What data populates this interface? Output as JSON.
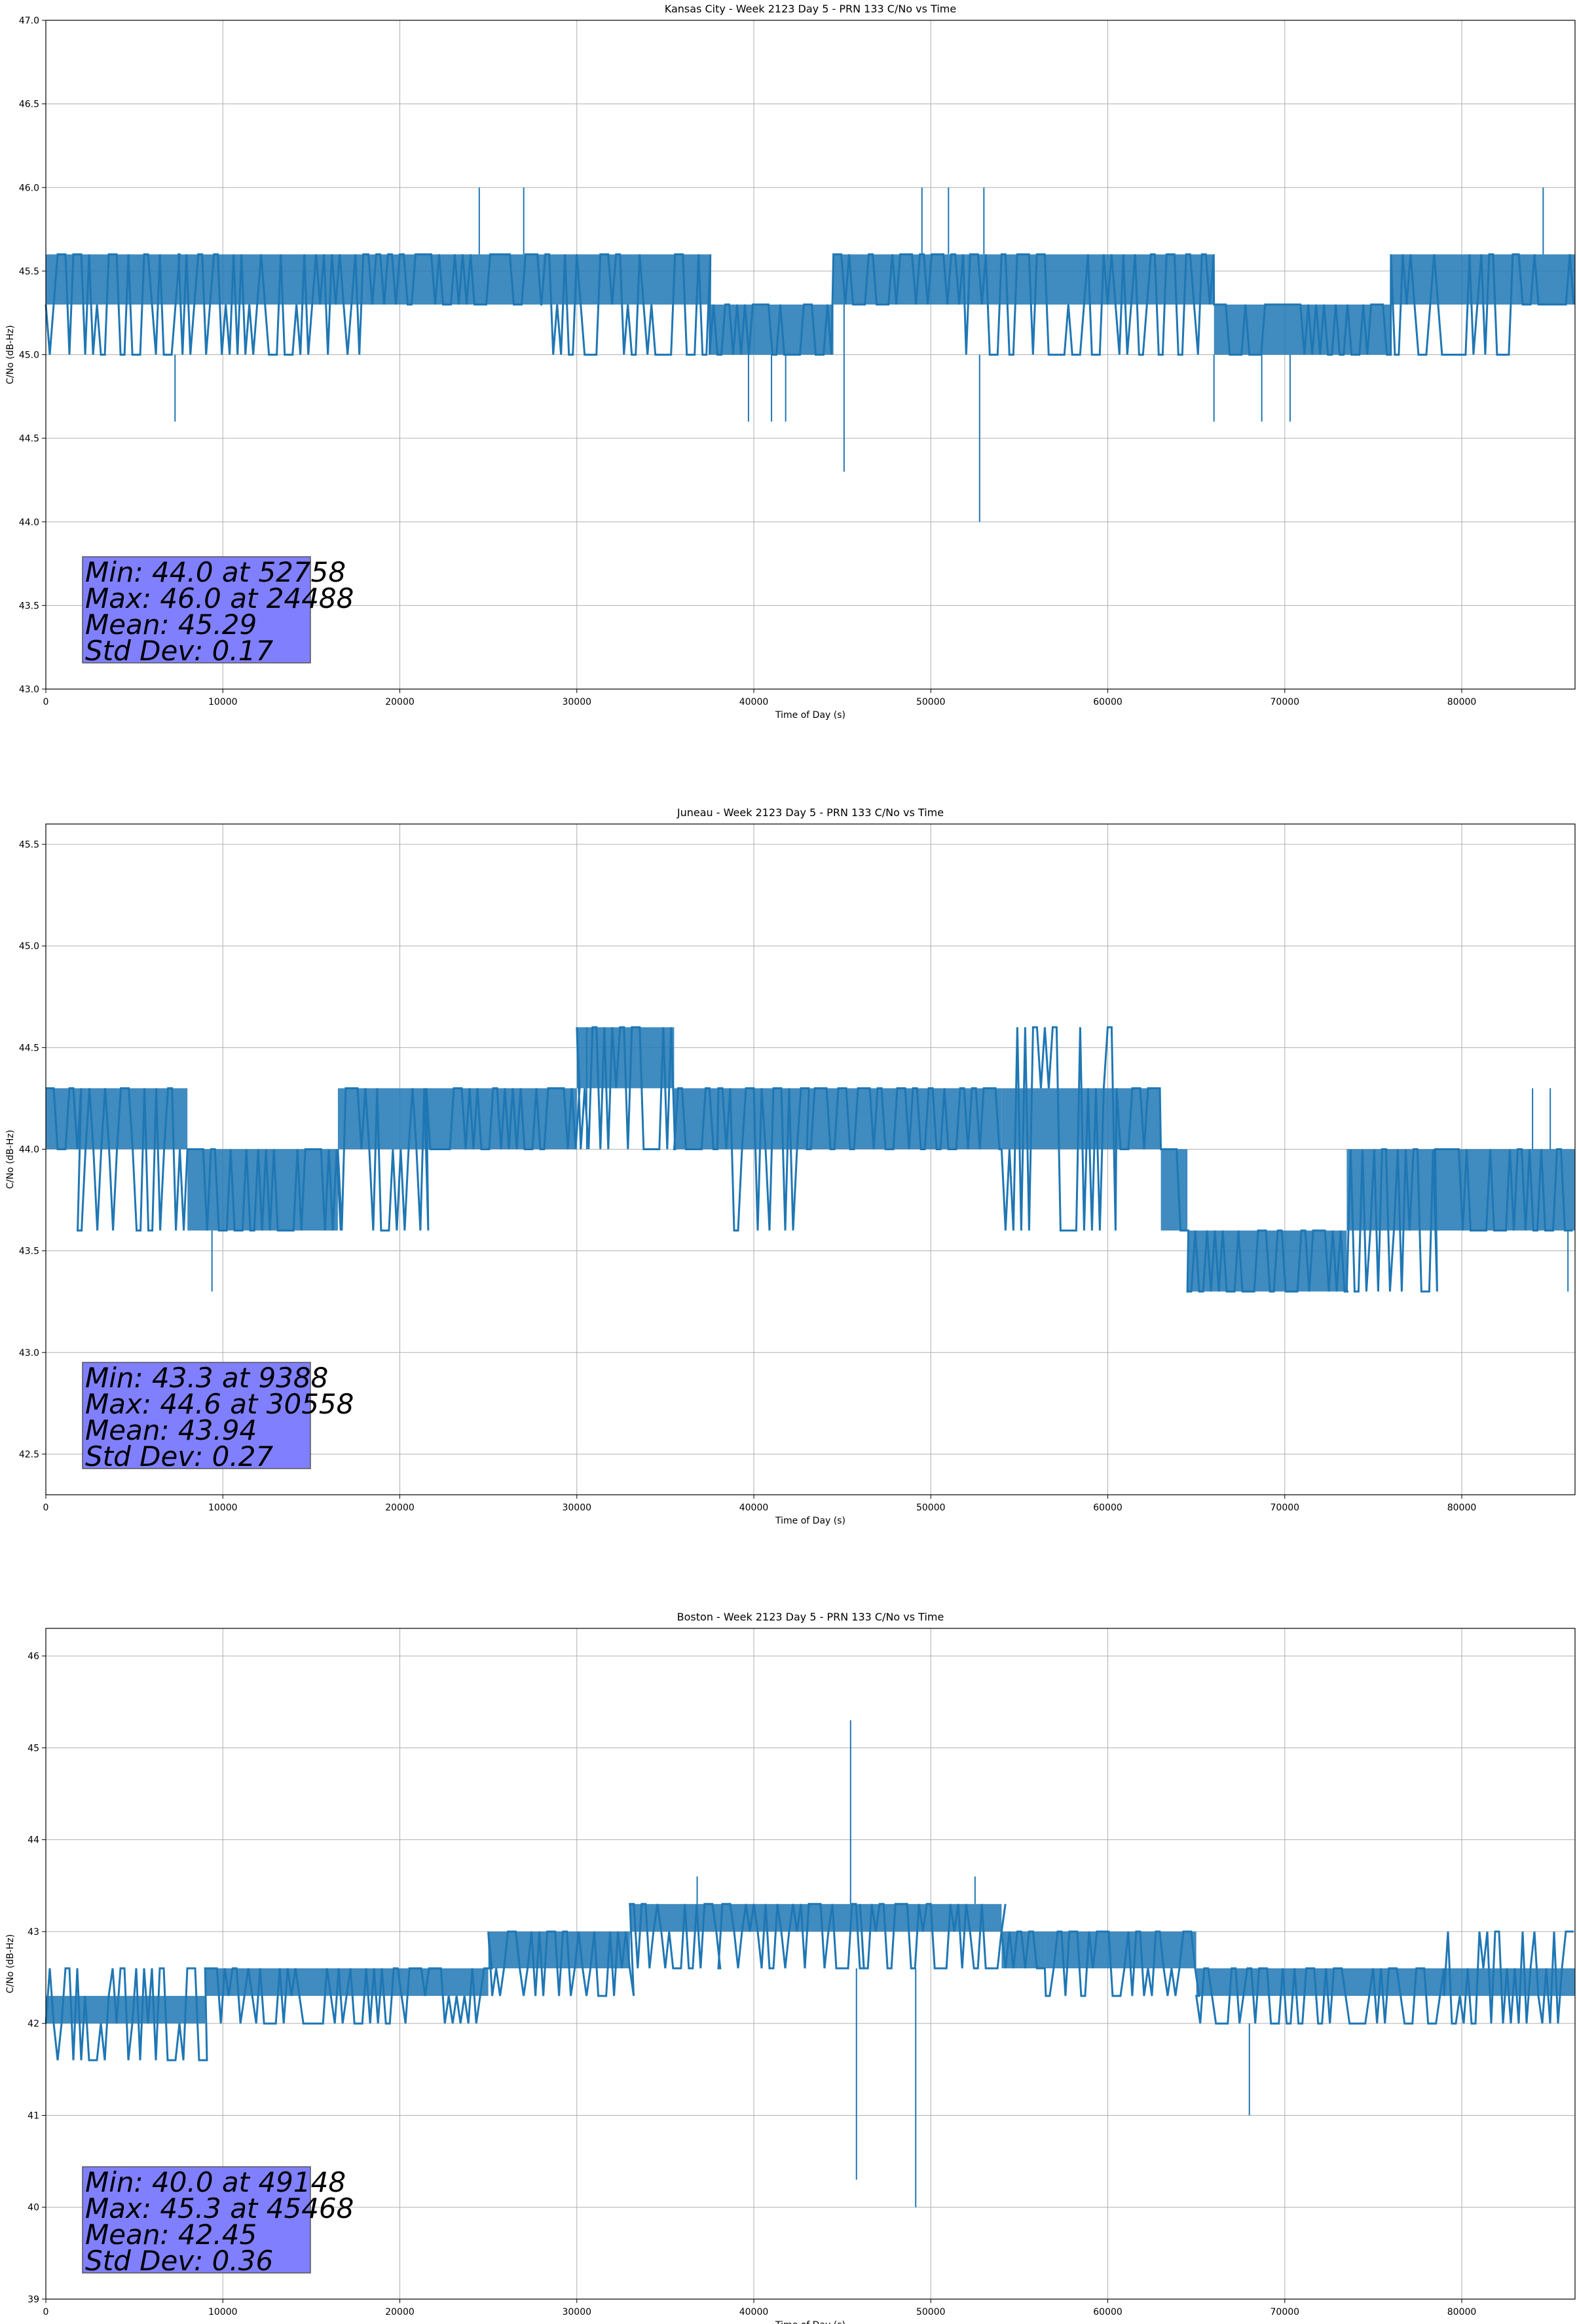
{
  "figure": {
    "line_color": "#1f77b4",
    "stats_box_color": "#8080ff",
    "grid_color": "#b0b0b0"
  },
  "chart_data": [
    {
      "type": "line",
      "title": "Kansas City - Week 2123 Day 5 - PRN 133 C/No vs Time",
      "xlabel": "Time of Day (s)",
      "ylabel": "C/No (dB-Hz)",
      "xlim": [
        0,
        86400
      ],
      "ylim": [
        43.0,
        47.0
      ],
      "xticks": [
        0,
        10000,
        20000,
        30000,
        40000,
        50000,
        60000,
        70000,
        80000
      ],
      "yticks": [
        "43.0",
        "43.5",
        "44.0",
        "44.5",
        "45.0",
        "45.5",
        "46.0",
        "46.5",
        "47.0"
      ],
      "grid": true,
      "quantization_step": 0.3,
      "bands": [
        {
          "x": [
            0,
            2000
          ],
          "levels": [
            45.0,
            45.3,
            45.6
          ]
        },
        {
          "x": [
            2000,
            7500
          ],
          "levels": [
            45.0,
            45.3,
            45.6
          ]
        },
        {
          "x": [
            7500,
            18000
          ],
          "levels": [
            45.0,
            45.3,
            45.6
          ]
        },
        {
          "x": [
            18000,
            28000
          ],
          "levels": [
            45.3,
            45.6
          ]
        },
        {
          "x": [
            28000,
            37500
          ],
          "levels": [
            45.0,
            45.3,
            45.6
          ]
        },
        {
          "x": [
            37500,
            44500
          ],
          "levels": [
            45.0,
            45.3
          ]
        },
        {
          "x": [
            44500,
            52000
          ],
          "levels": [
            45.3,
            45.6
          ]
        },
        {
          "x": [
            52000,
            66000
          ],
          "levels": [
            45.0,
            45.3,
            45.6
          ]
        },
        {
          "x": [
            66000,
            76000
          ],
          "levels": [
            45.0,
            45.3
          ]
        },
        {
          "x": [
            76000,
            83000
          ],
          "levels": [
            45.0,
            45.3,
            45.6
          ]
        },
        {
          "x": [
            83000,
            86400
          ],
          "levels": [
            45.3,
            45.6
          ]
        }
      ],
      "spikes": [
        {
          "x": 7300,
          "y": 44.6
        },
        {
          "x": 24488,
          "y": 46.0
        },
        {
          "x": 27000,
          "y": 46.0
        },
        {
          "x": 39700,
          "y": 44.6
        },
        {
          "x": 41000,
          "y": 44.6
        },
        {
          "x": 41800,
          "y": 44.6
        },
        {
          "x": 45100,
          "y": 44.3
        },
        {
          "x": 49500,
          "y": 46.0
        },
        {
          "x": 51000,
          "y": 46.0
        },
        {
          "x": 52758,
          "y": 44.0
        },
        {
          "x": 53000,
          "y": 46.0
        },
        {
          "x": 66000,
          "y": 44.6
        },
        {
          "x": 68700,
          "y": 44.6
        },
        {
          "x": 70300,
          "y": 44.6
        },
        {
          "x": 84600,
          "y": 46.0
        }
      ],
      "stats": {
        "min": "Min: 44.0 at 52758",
        "max": "Max: 46.0 at 24488",
        "mean": "Mean: 45.29",
        "std": "Std Dev: 0.17"
      }
    },
    {
      "type": "line",
      "title": "Juneau - Week 2123 Day 5 - PRN 133 C/No vs Time",
      "xlabel": "Time of Day (s)",
      "ylabel": "C/No (dB-Hz)",
      "xlim": [
        0,
        86400
      ],
      "ylim": [
        42.3,
        45.6
      ],
      "xticks": [
        0,
        10000,
        20000,
        30000,
        40000,
        50000,
        60000,
        70000,
        80000
      ],
      "yticks": [
        "42.5",
        "43.0",
        "43.5",
        "44.0",
        "44.5",
        "45.0",
        "45.5"
      ],
      "grid": true,
      "quantization_step": 0.3,
      "bands": [
        {
          "x": [
            0,
            1800
          ],
          "levels": [
            44.0,
            44.3
          ]
        },
        {
          "x": [
            1800,
            8000
          ],
          "levels": [
            43.6,
            44.0,
            44.3
          ]
        },
        {
          "x": [
            8000,
            16500
          ],
          "levels": [
            43.6,
            44.0
          ]
        },
        {
          "x": [
            16500,
            21500
          ],
          "levels": [
            43.6,
            44.0,
            44.3
          ]
        },
        {
          "x": [
            21500,
            30000
          ],
          "levels": [
            44.0,
            44.3
          ]
        },
        {
          "x": [
            30000,
            35500
          ],
          "levels": [
            44.0,
            44.3,
            44.6
          ]
        },
        {
          "x": [
            35500,
            38000
          ],
          "levels": [
            44.0,
            44.3
          ]
        },
        {
          "x": [
            38000,
            43000
          ],
          "levels": [
            43.6,
            44.0,
            44.3
          ]
        },
        {
          "x": [
            43000,
            54000
          ],
          "levels": [
            44.0,
            44.3
          ]
        },
        {
          "x": [
            54000,
            60500
          ],
          "levels": [
            43.6,
            44.0,
            44.3,
            44.6
          ]
        },
        {
          "x": [
            60500,
            63000
          ],
          "levels": [
            44.0,
            44.3
          ]
        },
        {
          "x": [
            63000,
            64500
          ],
          "levels": [
            43.6,
            44.0
          ]
        },
        {
          "x": [
            64500,
            73500
          ],
          "levels": [
            43.3,
            43.6
          ]
        },
        {
          "x": [
            73500,
            78500
          ],
          "levels": [
            43.3,
            43.6,
            44.0
          ]
        },
        {
          "x": [
            78500,
            86400
          ],
          "levels": [
            43.6,
            44.0
          ]
        }
      ],
      "spikes": [
        {
          "x": 9388,
          "y": 43.3
        },
        {
          "x": 30558,
          "y": 44.6
        },
        {
          "x": 84000,
          "y": 44.3
        },
        {
          "x": 85000,
          "y": 44.3
        },
        {
          "x": 86000,
          "y": 43.3
        }
      ],
      "stats": {
        "min": "Min: 43.3 at 9388",
        "max": "Max: 44.6 at 30558",
        "mean": "Mean: 43.94",
        "std": "Std Dev: 0.27"
      }
    },
    {
      "type": "line",
      "title": "Boston - Week 2123 Day 5 - PRN 133 C/No vs Time",
      "xlabel": "Time of Day (s)",
      "ylabel": "C/No (dB-Hz)",
      "xlim": [
        0,
        86400
      ],
      "ylim": [
        39.0,
        46.3
      ],
      "xticks": [
        0,
        10000,
        20000,
        30000,
        40000,
        50000,
        60000,
        70000,
        80000
      ],
      "yticks": [
        "39",
        "40",
        "41",
        "42",
        "43",
        "44",
        "45",
        "46"
      ],
      "grid": true,
      "quantization_step": 0.3,
      "bands": [
        {
          "x": [
            0,
            9000
          ],
          "levels": [
            41.6,
            42.0,
            42.3,
            42.6
          ]
        },
        {
          "x": [
            9000,
            25000
          ],
          "levels": [
            42.0,
            42.3,
            42.6
          ]
        },
        {
          "x": [
            25000,
            33000
          ],
          "levels": [
            42.3,
            42.6,
            43.0
          ]
        },
        {
          "x": [
            33000,
            38000
          ],
          "levels": [
            42.6,
            43.0,
            43.3
          ]
        },
        {
          "x": [
            38000,
            46000
          ],
          "levels": [
            42.6,
            43.0,
            43.3
          ]
        },
        {
          "x": [
            46000,
            54000
          ],
          "levels": [
            42.6,
            43.0,
            43.3
          ]
        },
        {
          "x": [
            54000,
            56500
          ],
          "levels": [
            42.6,
            43.0
          ]
        },
        {
          "x": [
            56500,
            65000
          ],
          "levels": [
            42.3,
            42.6,
            43.0
          ]
        },
        {
          "x": [
            65000,
            79000
          ],
          "levels": [
            42.0,
            42.3,
            42.6
          ]
        },
        {
          "x": [
            79000,
            86400
          ],
          "levels": [
            42.0,
            42.3,
            42.6,
            43.0
          ]
        }
      ],
      "spikes": [
        {
          "x": 36800,
          "y": 43.6
        },
        {
          "x": 45468,
          "y": 45.3
        },
        {
          "x": 45800,
          "y": 40.3
        },
        {
          "x": 49148,
          "y": 40.0
        },
        {
          "x": 52500,
          "y": 43.6
        },
        {
          "x": 68000,
          "y": 41.0
        }
      ],
      "stats": {
        "min": "Min: 40.0 at 49148",
        "max": "Max: 45.3 at 45468",
        "mean": "Mean: 42.45",
        "std": "Std Dev: 0.36"
      }
    }
  ]
}
